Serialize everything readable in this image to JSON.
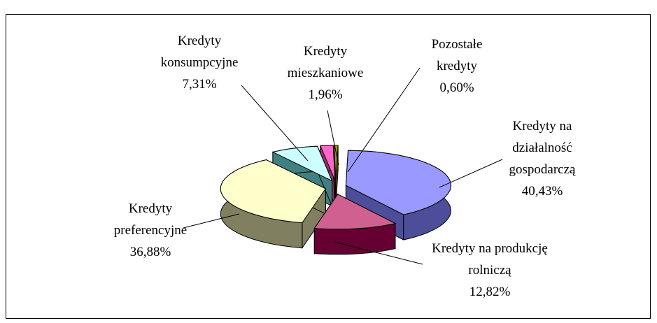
{
  "chart_data": {
    "type": "pie3d",
    "categories": [
      "Pozostałe kredyty",
      "Kredyty na działalność gospodarczą",
      "Kredyty na produkcję rolniczą",
      "Kredyty preferencyjne",
      "Kredyty konsumpcyjne",
      "Kredyty mieszkaniowe"
    ],
    "values": [
      0.6,
      40.43,
      12.82,
      36.88,
      7.31,
      1.96
    ],
    "value_labels": [
      "0,60%",
      "40,43%",
      "12,82%",
      "36,88%",
      "7,31%",
      "1,96%"
    ],
    "colors": [
      "#999900",
      "#9999ff",
      "#d0608f",
      "#ffffcc",
      "#ccffff",
      "#ff66cc"
    ],
    "side_colors": [
      "#666600",
      "#4d4d99",
      "#660033",
      "#808060",
      "#408080",
      "#993366"
    ]
  }
}
